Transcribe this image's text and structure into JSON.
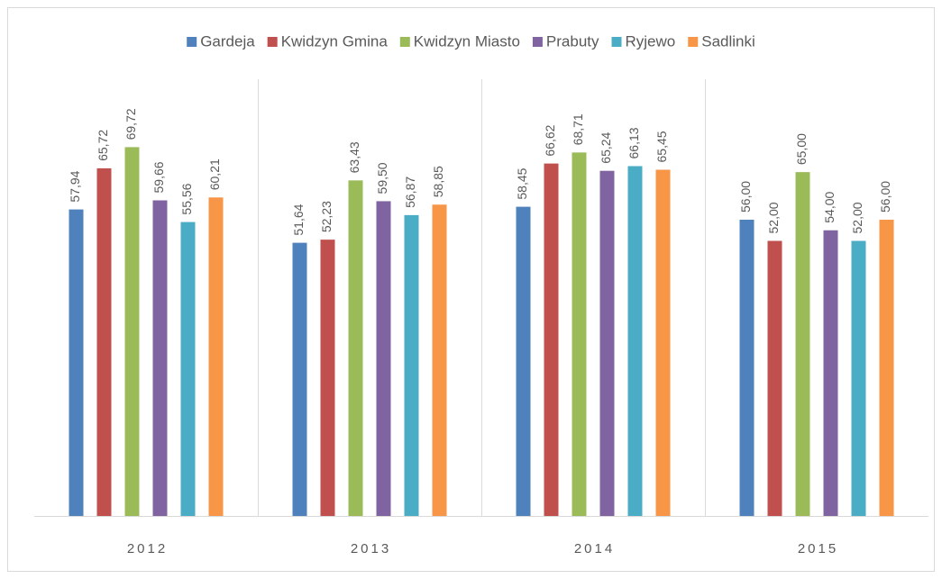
{
  "chart_data": {
    "type": "bar",
    "categories": [
      "2012",
      "2013",
      "2014",
      "2015"
    ],
    "series": [
      {
        "name": "Gardeja",
        "color": "#4f81bd",
        "values": [
          57.94,
          51.64,
          58.45,
          56.0
        ],
        "value_labels": [
          "57,94",
          "51,64",
          "58,45",
          "56,00"
        ]
      },
      {
        "name": "Kwidzyn Gmina",
        "color": "#c0504d",
        "values": [
          65.72,
          52.23,
          66.62,
          52.0
        ],
        "value_labels": [
          "65,72",
          "52,23",
          "66,62",
          "52,00"
        ]
      },
      {
        "name": "Kwidzyn Miasto",
        "color": "#9bbb59",
        "values": [
          69.72,
          63.43,
          68.71,
          65.0
        ],
        "value_labels": [
          "69,72",
          "63,43",
          "68,71",
          "65,00"
        ]
      },
      {
        "name": "Prabuty",
        "color": "#8064a2",
        "values": [
          59.66,
          59.5,
          65.24,
          54.0
        ],
        "value_labels": [
          "59,66",
          "59,50",
          "65,24",
          "54,00"
        ]
      },
      {
        "name": "Ryjewo",
        "color": "#4bacc6",
        "values": [
          55.56,
          56.87,
          66.13,
          52.0
        ],
        "value_labels": [
          "55,56",
          "56,87",
          "66,13",
          "52,00"
        ]
      },
      {
        "name": "Sadlinki",
        "color": "#f79646",
        "values": [
          60.21,
          58.85,
          65.45,
          56.0
        ],
        "value_labels": [
          "60,21",
          "58,85",
          "65,45",
          "56,00"
        ]
      }
    ],
    "ylim": [
      0,
      80
    ],
    "legend": "top"
  }
}
